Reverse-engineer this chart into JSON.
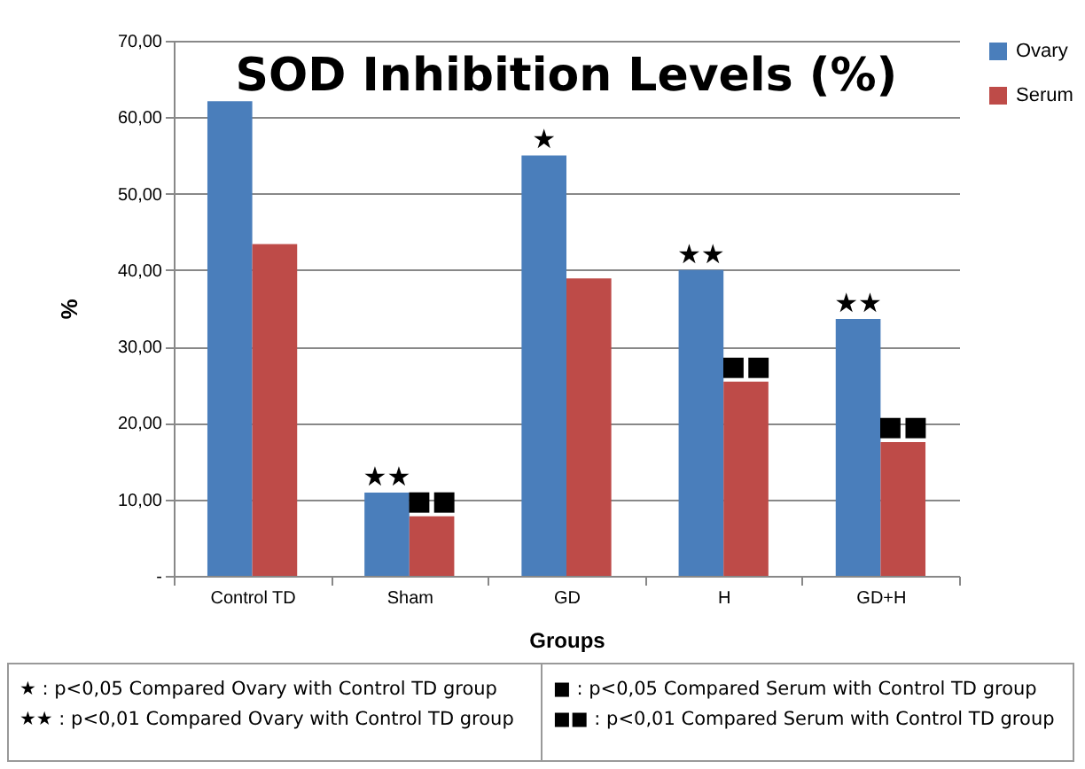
{
  "chart_data": {
    "type": "bar",
    "title": "SOD Inhibition Levels (%)",
    "xlabel": "Groups",
    "ylabel": "%",
    "categories": [
      "Control TD",
      "Sham",
      "GD",
      "H",
      "GD+H"
    ],
    "series": [
      {
        "name": "Ovary",
        "color": "#4a7ebb",
        "values": [
          62.1,
          10.9,
          55.0,
          40.0,
          33.6
        ]
      },
      {
        "name": "Serum",
        "color": "#be4b48",
        "values": [
          43.4,
          7.8,
          38.9,
          25.4,
          17.5
        ]
      }
    ],
    "ylim": [
      0,
      70
    ],
    "yticks": [
      {
        "value": 0,
        "label": "-"
      },
      {
        "value": 10,
        "label": "10,00"
      },
      {
        "value": 20,
        "label": "20,00"
      },
      {
        "value": 30,
        "label": "30,00"
      },
      {
        "value": 40,
        "label": "40,00"
      },
      {
        "value": 50,
        "label": "50,00"
      },
      {
        "value": 60,
        "label": "60,00"
      },
      {
        "value": 70,
        "label": "70,00"
      }
    ],
    "grid": "y",
    "legend": "right",
    "annotations": [
      {
        "text": "★★",
        "x": "Sham",
        "y": 10.9
      },
      {
        "text": "■■",
        "x": "Sham",
        "y": 7.8
      },
      {
        "text": "★",
        "x": "GD",
        "y": 55.0
      },
      {
        "text": "★★",
        "x": "H",
        "y": 40.0
      },
      {
        "text": "■■",
        "x": "H",
        "y": 25.4
      },
      {
        "text": "★★",
        "x": "GD+H",
        "y": 33.6
      },
      {
        "text": "■■",
        "x": "GD+H",
        "y": 17.5
      },
      "★ : p<0,05 Compared Ovary with Control  TD group",
      "★★ : p<0,01 Compared Ovary with Control  TD group",
      "■ : p<0,05 Compared Serum with Control  TD group",
      "■■ : p<0,01 Compared Serum with Control  TD group"
    ]
  }
}
